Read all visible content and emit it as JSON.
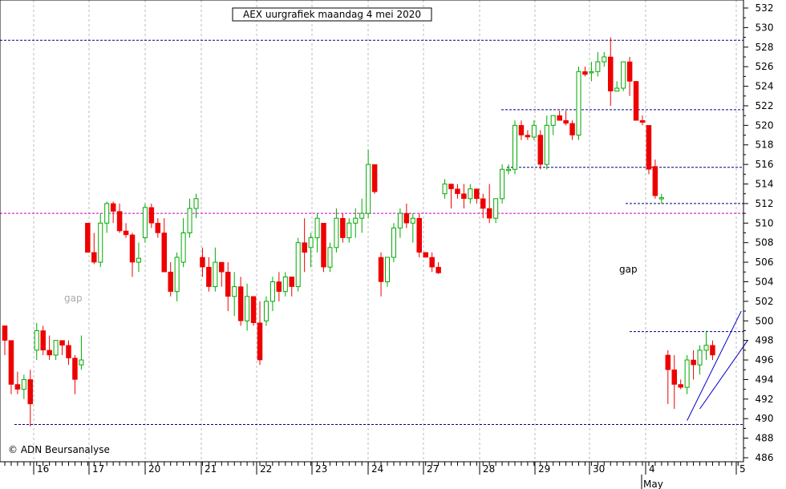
{
  "chart_data": {
    "type": "candlestick",
    "title": "AEX uurgrafiek maandag 4 mei 2020",
    "copyright": "© ADN Beursanalyse",
    "ylim": [
      486,
      533
    ],
    "y_ticks": [
      486,
      488,
      490,
      492,
      494,
      496,
      498,
      500,
      502,
      504,
      506,
      508,
      510,
      512,
      514,
      516,
      518,
      520,
      522,
      524,
      526,
      528,
      530,
      532
    ],
    "x_day_labels": [
      "16",
      "17",
      "20",
      "21",
      "22",
      "23",
      "24",
      "27",
      "28",
      "29",
      "30",
      "4",
      "5"
    ],
    "month_label": "May",
    "annotations": [
      "gap",
      "gap"
    ],
    "horizontal_levels": [
      {
        "value": 528.7,
        "style": "dashed",
        "color": "#000080"
      },
      {
        "value": 511.0,
        "style": "dashed",
        "color": "#cc00cc"
      },
      {
        "value": 489.4,
        "style": "dashed",
        "color": "#000080"
      },
      {
        "value": 521.6,
        "style": "dashed",
        "color": "#000080"
      },
      {
        "value": 515.7,
        "style": "dashed",
        "color": "#000080"
      },
      {
        "value": 512.0,
        "style": "dashed",
        "color": "#000080"
      },
      {
        "value": 498.9,
        "style": "dashed",
        "color": "#000080"
      }
    ],
    "colors": {
      "up": "#00aa00",
      "down": "#ee0000",
      "grid": "#bbbbbb",
      "level": "#000080",
      "level2": "#cc00cc",
      "channel": "#0000cc"
    },
    "candles": [
      [
        499.5,
        499.5,
        496.5,
        498.0
      ],
      [
        498.0,
        498.0,
        492.5,
        493.5
      ],
      [
        493.5,
        494.8,
        492.5,
        493.0
      ],
      [
        493.0,
        494.5,
        492.0,
        494.0
      ],
      [
        494.0,
        495.0,
        489.2,
        491.5
      ],
      [
        497.0,
        499.8,
        496.0,
        499.0
      ],
      [
        499.0,
        499.5,
        496.5,
        497.0
      ],
      [
        497.0,
        498.5,
        496.0,
        496.5
      ],
      [
        496.5,
        498.0,
        496.0,
        498.0
      ],
      [
        498.0,
        498.0,
        496.5,
        497.5
      ],
      [
        497.5,
        498.0,
        495.5,
        496.2
      ],
      [
        496.2,
        496.5,
        492.5,
        494.0
      ],
      [
        495.5,
        498.5,
        495.0,
        496.0
      ],
      [
        510.0,
        510.0,
        507.0,
        507.0
      ],
      [
        507.0,
        509.0,
        505.8,
        506.0
      ],
      [
        506.0,
        511.0,
        505.5,
        510.0
      ],
      [
        510.0,
        512.2,
        509.0,
        512.0
      ],
      [
        512.0,
        512.2,
        510.0,
        511.2
      ],
      [
        511.2,
        512.0,
        509.0,
        509.2
      ],
      [
        509.2,
        510.0,
        508.5,
        508.8
      ],
      [
        508.8,
        509.0,
        504.5,
        506.0
      ],
      [
        506.0,
        508.0,
        505.0,
        506.4
      ],
      [
        508.5,
        512.0,
        508.0,
        511.6
      ],
      [
        511.6,
        512.0,
        509.5,
        510.0
      ],
      [
        510.0,
        510.5,
        508.5,
        509.0
      ],
      [
        509.0,
        510.5,
        505.0,
        505.0
      ],
      [
        505.0,
        506.0,
        502.5,
        503.0
      ],
      [
        503.0,
        507.0,
        502.0,
        506.5
      ],
      [
        506.0,
        510.5,
        505.5,
        509.0
      ],
      [
        509.0,
        512.5,
        508.5,
        511.5
      ],
      [
        511.5,
        513.0,
        510.5,
        512.5
      ],
      [
        506.5,
        507.5,
        504.5,
        505.5
      ],
      [
        505.5,
        506.5,
        503.0,
        503.5
      ],
      [
        503.5,
        507.5,
        503.0,
        506.0
      ],
      [
        506.0,
        506.0,
        503.5,
        505.0
      ],
      [
        505.0,
        506.0,
        501.0,
        502.5
      ],
      [
        502.5,
        505.0,
        500.5,
        503.5
      ],
      [
        503.5,
        504.5,
        499.5,
        500.0
      ],
      [
        500.0,
        503.8,
        499.0,
        502.5
      ],
      [
        502.5,
        502.5,
        499.5,
        499.8
      ],
      [
        499.8,
        502.0,
        495.5,
        496.0
      ],
      [
        500.0,
        502.5,
        499.5,
        502.0
      ],
      [
        502.0,
        504.5,
        501.0,
        504.0
      ],
      [
        504.0,
        505.0,
        502.0,
        503.0
      ],
      [
        503.0,
        505.0,
        502.5,
        504.5
      ],
      [
        504.5,
        504.5,
        502.5,
        503.5
      ],
      [
        503.5,
        508.5,
        503.0,
        508.0
      ],
      [
        508.0,
        510.5,
        505.0,
        507.0
      ],
      [
        507.5,
        509.0,
        505.5,
        508.5
      ],
      [
        508.5,
        511.0,
        507.0,
        510.5
      ],
      [
        510.0,
        510.0,
        505.0,
        505.5
      ],
      [
        505.5,
        508.0,
        505.0,
        507.5
      ],
      [
        507.5,
        511.5,
        507.0,
        510.5
      ],
      [
        510.5,
        511.0,
        508.0,
        508.5
      ],
      [
        508.5,
        510.5,
        508.0,
        510.0
      ],
      [
        510.0,
        511.5,
        508.5,
        510.5
      ],
      [
        510.5,
        512.5,
        509.0,
        511.0
      ],
      [
        511.0,
        517.5,
        510.5,
        516.0
      ],
      [
        516.0,
        516.0,
        513.0,
        513.2
      ],
      [
        506.5,
        507.0,
        502.5,
        504.0
      ],
      [
        504.0,
        506.5,
        503.5,
        506.5
      ],
      [
        506.5,
        510.0,
        506.0,
        509.5
      ],
      [
        509.5,
        511.5,
        508.5,
        511.0
      ],
      [
        511.0,
        512.0,
        509.5,
        510.0
      ],
      [
        510.0,
        511.0,
        508.0,
        510.5
      ],
      [
        510.5,
        511.0,
        506.5,
        507.0
      ],
      [
        507.0,
        507.0,
        506.5,
        506.5
      ],
      [
        506.5,
        507.0,
        505.0,
        505.5
      ],
      [
        505.5,
        506.0,
        504.8,
        504.9
      ],
      [
        513.0,
        514.5,
        512.5,
        514.0
      ],
      [
        514.0,
        514.0,
        511.5,
        513.5
      ],
      [
        513.5,
        514.0,
        512.5,
        513.0
      ],
      [
        513.0,
        514.0,
        511.5,
        512.5
      ],
      [
        512.5,
        514.0,
        512.0,
        513.5
      ],
      [
        513.5,
        513.5,
        512.0,
        512.5
      ],
      [
        512.5,
        513.0,
        510.5,
        511.5
      ],
      [
        511.5,
        514.0,
        510.0,
        510.5
      ],
      [
        510.5,
        512.5,
        510.0,
        512.5
      ],
      [
        512.5,
        516.0,
        512.0,
        515.5
      ],
      [
        515.5,
        516.0,
        515.0,
        515.5
      ],
      [
        515.5,
        520.5,
        515.0,
        520.0
      ],
      [
        520.0,
        520.5,
        518.5,
        519.0
      ],
      [
        519.0,
        519.5,
        518.5,
        518.8
      ],
      [
        518.8,
        520.5,
        518.5,
        520.0
      ],
      [
        519.0,
        519.5,
        515.5,
        516.0
      ],
      [
        516.0,
        521.0,
        515.5,
        520.0
      ],
      [
        520.0,
        521.0,
        519.0,
        521.0
      ],
      [
        521.0,
        521.5,
        520.5,
        520.5
      ],
      [
        520.5,
        521.5,
        520.0,
        520.2
      ],
      [
        520.2,
        520.5,
        518.5,
        519.0
      ],
      [
        519.0,
        526.0,
        518.5,
        525.5
      ],
      [
        525.5,
        526.0,
        525.0,
        525.2
      ],
      [
        525.5,
        526.5,
        524.5,
        525.5
      ],
      [
        525.5,
        527.5,
        525.0,
        526.5
      ],
      [
        526.5,
        527.5,
        526.0,
        527.0
      ],
      [
        527.0,
        529.0,
        522.0,
        523.5
      ],
      [
        523.5,
        524.5,
        523.5,
        523.8
      ],
      [
        523.8,
        526.5,
        523.5,
        526.5
      ],
      [
        526.5,
        527.0,
        523.0,
        524.5
      ],
      [
        524.5,
        524.5,
        520.5,
        520.5
      ],
      [
        520.5,
        521.0,
        520.0,
        520.3
      ],
      [
        520.0,
        520.0,
        515.0,
        515.5
      ],
      [
        515.8,
        516.5,
        512.5,
        512.8
      ],
      [
        512.5,
        513.0,
        512.0,
        512.6
      ],
      [
        496.5,
        497.0,
        491.5,
        495.0
      ],
      [
        495.0,
        496.5,
        491.0,
        493.5
      ],
      [
        493.5,
        494.0,
        493.0,
        493.2
      ],
      [
        493.2,
        496.5,
        492.5,
        496.0
      ],
      [
        496.0,
        497.0,
        494.0,
        495.5
      ],
      [
        495.5,
        497.5,
        494.5,
        497.0
      ],
      [
        497.0,
        499.0,
        496.0,
        497.5
      ],
      [
        497.5,
        498.0,
        496.0,
        496.5
      ]
    ],
    "channel_lines": [
      {
        "from": {
          "candle": 107,
          "value": 489.8
        },
        "to": {
          "candle": 115.5,
          "value": 501.0
        }
      },
      {
        "from": {
          "candle": 109,
          "value": 491.0
        },
        "to": {
          "candle": 116.5,
          "value": 498.0
        }
      }
    ]
  }
}
